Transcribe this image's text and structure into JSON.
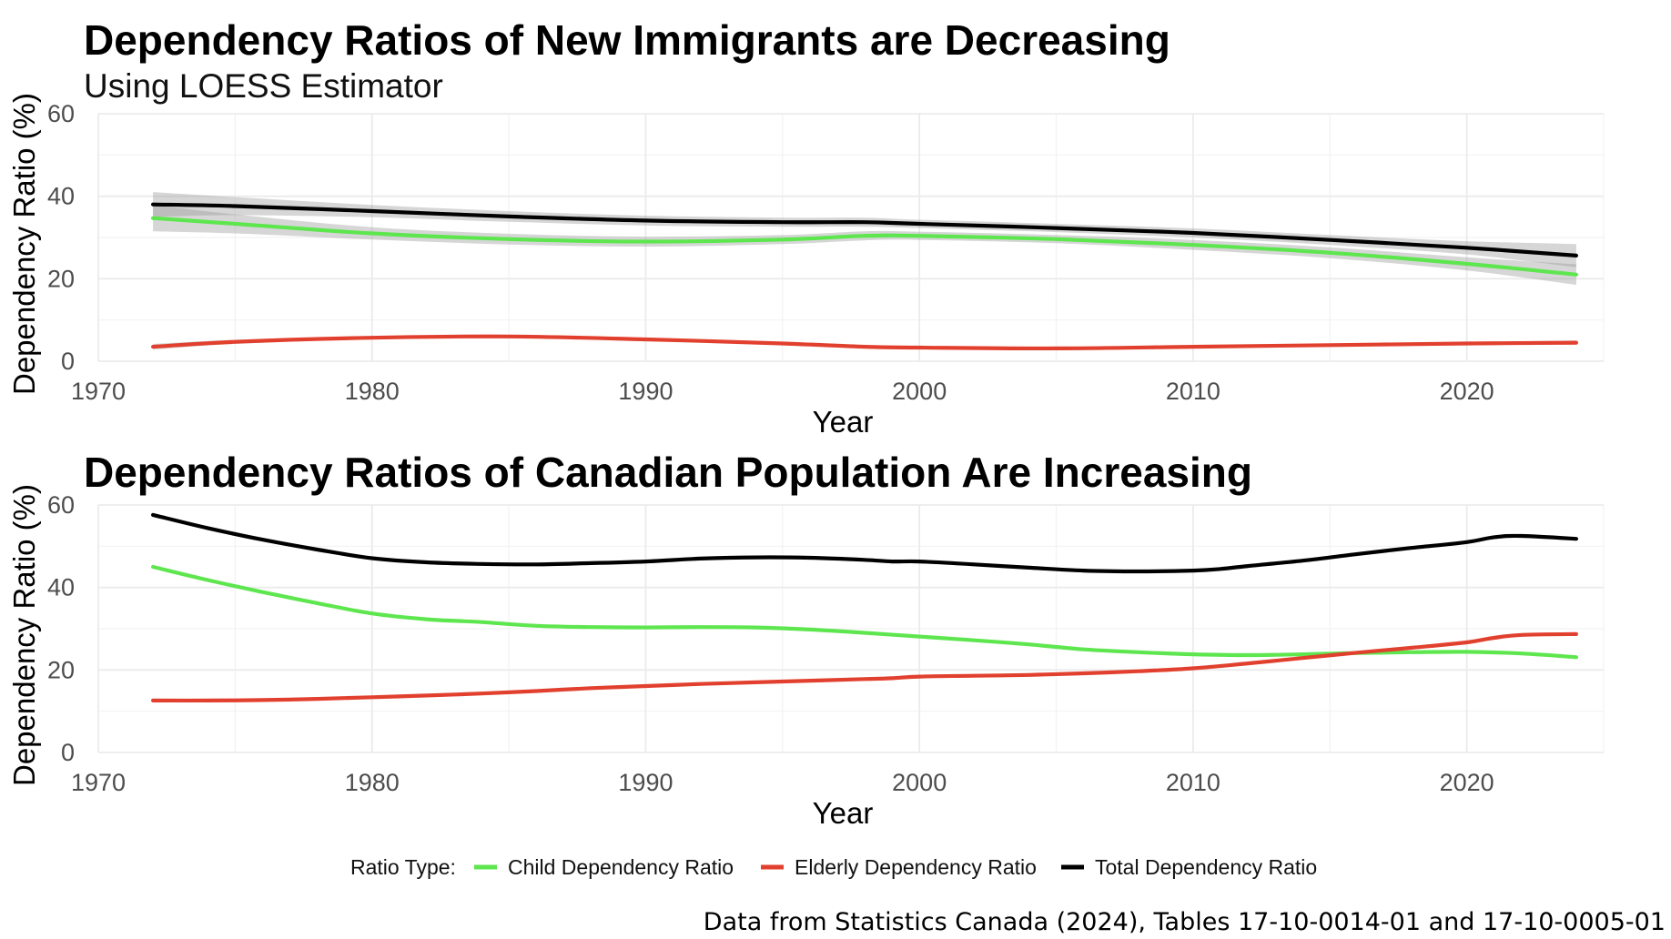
{
  "chart_data": [
    {
      "type": "line",
      "title": "Dependency Ratios of New Immigrants are Decreasing",
      "subtitle": "Using LOESS Estimator",
      "xlabel": "Year",
      "ylabel": "Dependency Ratio (%)",
      "xlim": [
        1970,
        2025
      ],
      "ylim": [
        0,
        60
      ],
      "x_ticks": [
        1970,
        1980,
        1990,
        2000,
        2010,
        2020
      ],
      "y_ticks": [
        0,
        20,
        40,
        60
      ],
      "grid": true,
      "confidence_band": true,
      "series": [
        {
          "name": "Child Dependency Ratio",
          "color": "#5ee64f",
          "points": [
            [
              1972,
              34.7
            ],
            [
              1975,
              33.3
            ],
            [
              1980,
              31.0
            ],
            [
              1985,
              29.6
            ],
            [
              1990,
              29.0
            ],
            [
              1995,
              29.5
            ],
            [
              1998,
              30.4
            ],
            [
              2000,
              30.4
            ],
            [
              2005,
              29.6
            ],
            [
              2010,
              28.2
            ],
            [
              2015,
              26.3
            ],
            [
              2020,
              23.6
            ],
            [
              2024,
              21.0
            ]
          ],
          "band_lower": [
            31.5,
            31.0,
            29.5,
            28.3,
            27.8,
            28.4,
            29.3,
            29.4,
            28.6,
            27.0,
            25.0,
            22.0,
            18.5
          ],
          "band_upper": [
            37.9,
            35.6,
            32.5,
            30.9,
            30.2,
            30.6,
            31.5,
            31.4,
            30.6,
            29.4,
            27.6,
            25.2,
            23.5
          ]
        },
        {
          "name": "Elderly Dependency Ratio",
          "color": "#e2402e",
          "points": [
            [
              1972,
              3.5
            ],
            [
              1975,
              4.7
            ],
            [
              1980,
              5.7
            ],
            [
              1985,
              6.0
            ],
            [
              1990,
              5.3
            ],
            [
              1995,
              4.3
            ],
            [
              1998,
              3.5
            ],
            [
              2000,
              3.3
            ],
            [
              2005,
              3.1
            ],
            [
              2010,
              3.5
            ],
            [
              2015,
              3.9
            ],
            [
              2020,
              4.3
            ],
            [
              2024,
              4.5
            ]
          ],
          "band_lower": [
            2.8,
            4.2,
            5.3,
            5.6,
            5.0,
            4.0,
            3.2,
            3.0,
            2.8,
            3.2,
            3.6,
            4.0,
            4.0
          ],
          "band_upper": [
            4.2,
            5.2,
            6.1,
            6.4,
            5.6,
            4.6,
            3.8,
            3.6,
            3.4,
            3.8,
            4.2,
            4.6,
            5.0
          ]
        },
        {
          "name": "Total Dependency Ratio",
          "color": "#000000",
          "points": [
            [
              1972,
              38.0
            ],
            [
              1975,
              37.6
            ],
            [
              1980,
              36.4
            ],
            [
              1985,
              35.1
            ],
            [
              1990,
              34.1
            ],
            [
              1995,
              33.7
            ],
            [
              1998,
              33.7
            ],
            [
              2000,
              33.3
            ],
            [
              2005,
              32.3
            ],
            [
              2010,
              31.1
            ],
            [
              2015,
              29.4
            ],
            [
              2020,
              27.5
            ],
            [
              2024,
              25.6
            ]
          ],
          "band_lower": [
            35.0,
            35.4,
            34.9,
            33.8,
            32.9,
            32.6,
            32.6,
            32.3,
            31.3,
            30.0,
            28.2,
            25.9,
            22.8
          ],
          "band_upper": [
            41.0,
            39.8,
            37.9,
            36.4,
            35.3,
            34.8,
            34.8,
            34.3,
            33.3,
            32.2,
            30.6,
            29.1,
            28.4
          ]
        }
      ]
    },
    {
      "type": "line",
      "title": "Dependency Ratios of Canadian Population Are Increasing",
      "xlabel": "Year",
      "ylabel": "Dependency Ratio (%)",
      "xlim": [
        1970,
        2025
      ],
      "ylim": [
        0,
        60
      ],
      "x_ticks": [
        1970,
        1980,
        1990,
        2000,
        2010,
        2020
      ],
      "y_ticks": [
        0,
        20,
        40,
        60
      ],
      "grid": true,
      "series": [
        {
          "name": "Child Dependency Ratio",
          "color": "#5ee64f",
          "points": [
            [
              1972,
              45.0
            ],
            [
              1974,
              41.8
            ],
            [
              1976,
              38.9
            ],
            [
              1978,
              36.2
            ],
            [
              1980,
              33.7
            ],
            [
              1982,
              32.3
            ],
            [
              1984,
              31.6
            ],
            [
              1986,
              30.7
            ],
            [
              1988,
              30.4
            ],
            [
              1990,
              30.3
            ],
            [
              1992,
              30.4
            ],
            [
              1994,
              30.3
            ],
            [
              1996,
              29.8
            ],
            [
              1998,
              29.0
            ],
            [
              2000,
              28.1
            ],
            [
              2002,
              27.2
            ],
            [
              2004,
              26.2
            ],
            [
              2006,
              25.0
            ],
            [
              2008,
              24.3
            ],
            [
              2010,
              23.8
            ],
            [
              2012,
              23.6
            ],
            [
              2014,
              23.8
            ],
            [
              2016,
              24.1
            ],
            [
              2018,
              24.3
            ],
            [
              2020,
              24.4
            ],
            [
              2022,
              24.0
            ],
            [
              2024,
              23.1
            ]
          ]
        },
        {
          "name": "Elderly Dependency Ratio",
          "color": "#e2402e",
          "points": [
            [
              1972,
              12.6
            ],
            [
              1974,
              12.6
            ],
            [
              1976,
              12.7
            ],
            [
              1978,
              13.0
            ],
            [
              1980,
              13.4
            ],
            [
              1982,
              13.8
            ],
            [
              1984,
              14.3
            ],
            [
              1986,
              14.9
            ],
            [
              1988,
              15.6
            ],
            [
              1990,
              16.1
            ],
            [
              1992,
              16.6
            ],
            [
              1994,
              17.0
            ],
            [
              1996,
              17.4
            ],
            [
              1998,
              17.8
            ],
            [
              1999,
              18.0
            ],
            [
              2000,
              18.4
            ],
            [
              2002,
              18.6
            ],
            [
              2004,
              18.8
            ],
            [
              2006,
              19.2
            ],
            [
              2008,
              19.7
            ],
            [
              2010,
              20.4
            ],
            [
              2012,
              21.6
            ],
            [
              2014,
              22.9
            ],
            [
              2016,
              24.2
            ],
            [
              2018,
              25.4
            ],
            [
              2020,
              26.7
            ],
            [
              2021,
              27.8
            ],
            [
              2022,
              28.5
            ],
            [
              2024,
              28.7
            ]
          ]
        },
        {
          "name": "Total Dependency Ratio",
          "color": "#000000",
          "points": [
            [
              1972,
              57.6
            ],
            [
              1974,
              54.4
            ],
            [
              1976,
              51.6
            ],
            [
              1978,
              49.2
            ],
            [
              1980,
              47.1
            ],
            [
              1982,
              46.1
            ],
            [
              1984,
              45.7
            ],
            [
              1986,
              45.6
            ],
            [
              1988,
              45.9
            ],
            [
              1990,
              46.3
            ],
            [
              1992,
              47.0
            ],
            [
              1994,
              47.3
            ],
            [
              1996,
              47.2
            ],
            [
              1998,
              46.7
            ],
            [
              1999,
              46.3
            ],
            [
              2000,
              46.3
            ],
            [
              2002,
              45.6
            ],
            [
              2004,
              44.8
            ],
            [
              2006,
              44.1
            ],
            [
              2008,
              43.9
            ],
            [
              2010,
              44.1
            ],
            [
              2011,
              44.5
            ],
            [
              2012,
              45.2
            ],
            [
              2014,
              46.5
            ],
            [
              2016,
              48.1
            ],
            [
              2018,
              49.6
            ],
            [
              2020,
              51.0
            ],
            [
              2021,
              52.2
            ],
            [
              2022,
              52.5
            ],
            [
              2024,
              51.8
            ]
          ]
        }
      ]
    }
  ],
  "legend": {
    "title": "Ratio Type:",
    "position": "bottom",
    "items": [
      {
        "label": "Child Dependency Ratio",
        "color": "#5ee64f"
      },
      {
        "label": "Elderly Dependency Ratio",
        "color": "#e2402e"
      },
      {
        "label": "Total Dependency Ratio",
        "color": "#000000"
      }
    ]
  },
  "caption": "Data from Statistics Canada (2024), Tables 17-10-0014-01 and 17-10-0005-01"
}
